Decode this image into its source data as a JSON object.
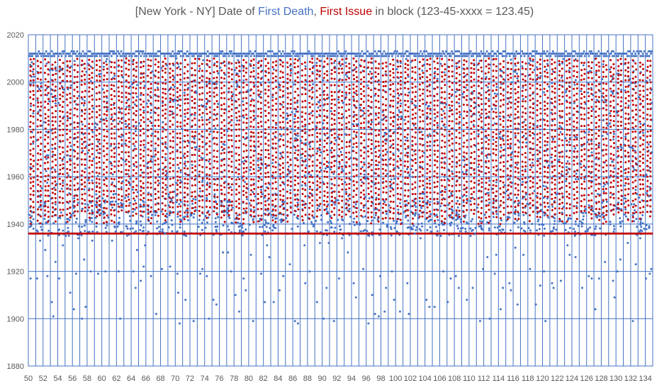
{
  "chart_data": {
    "type": "scatter",
    "title_parts": [
      {
        "text": "[New York - NY] Date of ",
        "color": "#595959"
      },
      {
        "text": "First Death",
        "color": "#4472C4"
      },
      {
        "text": ", ",
        "color": "#595959"
      },
      {
        "text": "First Issue",
        "color": "#C00000"
      },
      {
        "text": " in block (123-45-xxxx = 123.45)",
        "color": "#595959"
      }
    ],
    "x_range": [
      50,
      135
    ],
    "x_ticks": [
      "50",
      "52",
      "54",
      "56",
      "58",
      "60",
      "62",
      "64",
      "66",
      "68",
      "70",
      "72",
      "74",
      "76",
      "78",
      "80",
      "82",
      "84",
      "86",
      "88",
      "90",
      "92",
      "94",
      "96",
      "98",
      "100",
      "102",
      "104",
      "106",
      "108",
      "110",
      "112",
      "114",
      "116",
      "118",
      "120",
      "122",
      "124",
      "126",
      "128",
      "130",
      "132",
      "134"
    ],
    "y_range": [
      1880,
      2020
    ],
    "y_ticks": [
      "1880",
      "1900",
      "1920",
      "1940",
      "1960",
      "1980",
      "2000",
      "2020"
    ],
    "grid": true,
    "legend": "none",
    "series": [
      {
        "name": "First Death",
        "color": "#4472C4",
        "note_values": "dense per-block cloud: top band 2011-2013 in every block, scattered 1935-2010, sparse outliers 1898-1935",
        "points": [
          [
            50.3,
            1917
          ],
          [
            50.5,
            1945
          ],
          [
            50.7,
            1938
          ],
          [
            51.2,
            1917
          ],
          [
            51.6,
            1933
          ],
          [
            51.9,
            1940
          ],
          [
            52.3,
            1929
          ],
          [
            52.6,
            1918
          ],
          [
            53.2,
            1907
          ],
          [
            53.4,
            1901
          ],
          [
            53.7,
            1924
          ],
          [
            54.2,
            1917
          ],
          [
            54.7,
            1931
          ],
          [
            55.1,
            1935
          ],
          [
            55.7,
            1911
          ],
          [
            56.2,
            1904
          ],
          [
            56.5,
            1919
          ],
          [
            56.8,
            1934
          ],
          [
            57.3,
            1900
          ],
          [
            57.6,
            1925
          ],
          [
            57.8,
            1905
          ],
          [
            58.5,
            1920
          ],
          [
            58.7,
            1933
          ],
          [
            59.5,
            1919
          ],
          [
            60.5,
            1920
          ],
          [
            61.4,
            1933
          ],
          [
            62.3,
            1920
          ],
          [
            62.5,
            1900
          ],
          [
            63.4,
            1939
          ],
          [
            64.3,
            1920
          ],
          [
            64.6,
            1913
          ],
          [
            64.8,
            1929
          ],
          [
            65.3,
            1916
          ],
          [
            65.7,
            1922
          ],
          [
            65.9,
            1931
          ],
          [
            66.7,
            1918
          ],
          [
            67.4,
            1902
          ],
          [
            68.2,
            1921
          ],
          [
            68.6,
            1936
          ],
          [
            69.3,
            1922
          ],
          [
            70.3,
            1919
          ],
          [
            70.4,
            1911
          ],
          [
            70.6,
            1898
          ],
          [
            71.4,
            1908
          ],
          [
            72.5,
            1899
          ],
          [
            73.4,
            1919
          ],
          [
            73.7,
            1921
          ],
          [
            74.3,
            1918
          ],
          [
            74.6,
            1900
          ],
          [
            75.2,
            1908
          ],
          [
            75.6,
            1906
          ],
          [
            76.5,
            1928
          ],
          [
            77.2,
            1928
          ],
          [
            77.6,
            1920
          ],
          [
            78.2,
            1910
          ],
          [
            78.7,
            1903
          ],
          [
            79.3,
            1917
          ],
          [
            79.6,
            1912
          ],
          [
            80.3,
            1927
          ],
          [
            80.6,
            1899
          ],
          [
            81.7,
            1919
          ],
          [
            82.2,
            1907
          ],
          [
            82.5,
            1931
          ],
          [
            82.8,
            1926
          ],
          [
            83.4,
            1907
          ],
          [
            84.2,
            1912
          ],
          [
            84.7,
            1918
          ],
          [
            85.6,
            1923
          ],
          [
            86.3,
            1899
          ],
          [
            86.7,
            1898
          ],
          [
            87.6,
            1931
          ],
          [
            87.7,
            1915
          ],
          [
            88.3,
            1920
          ],
          [
            89.3,
            1907
          ],
          [
            89.7,
            1932
          ],
          [
            90.2,
            1900
          ],
          [
            90.6,
            1913
          ],
          [
            90.9,
            1932
          ],
          [
            91.6,
            1899
          ],
          [
            92.3,
            1917
          ],
          [
            92.7,
            1934
          ],
          [
            93.5,
            1928
          ],
          [
            94.3,
            1915
          ],
          [
            94.6,
            1909
          ],
          [
            95.6,
            1921
          ],
          [
            96.3,
            1898
          ],
          [
            96.8,
            1910
          ],
          [
            97.2,
            1902
          ],
          [
            97.7,
            1901
          ],
          [
            97.9,
            1918
          ],
          [
            98.5,
            1903
          ],
          [
            98.7,
            1913
          ],
          [
            99.5,
            1920
          ],
          [
            99.8,
            1908
          ],
          [
            100.6,
            1903
          ],
          [
            101.6,
            1915
          ],
          [
            101.8,
            1902
          ],
          [
            102.6,
            1936
          ],
          [
            103.4,
            1934
          ],
          [
            104.2,
            1908
          ],
          [
            104.6,
            1905
          ],
          [
            105.3,
            1905
          ],
          [
            105.7,
            1937
          ],
          [
            106.5,
            1920
          ],
          [
            107.1,
            1907
          ],
          [
            107.5,
            1917
          ],
          [
            108.2,
            1918
          ],
          [
            108.6,
            1913
          ],
          [
            109.5,
            1938
          ],
          [
            109.7,
            1908
          ],
          [
            110.5,
            1913
          ],
          [
            110.8,
            1936
          ],
          [
            111.5,
            1899
          ],
          [
            111.9,
            1921
          ],
          [
            112.5,
            1926
          ],
          [
            112.8,
            1900
          ],
          [
            113.5,
            1919
          ],
          [
            113.7,
            1927
          ],
          [
            114.3,
            1904
          ],
          [
            114.6,
            1913
          ],
          [
            115.5,
            1915
          ],
          [
            115.7,
            1912
          ],
          [
            116.3,
            1930
          ],
          [
            116.6,
            1906
          ],
          [
            117.4,
            1927
          ],
          [
            118.3,
            1921
          ],
          [
            119.1,
            1906
          ],
          [
            119.7,
            1914
          ],
          [
            120.2,
            1920
          ],
          [
            120.4,
            1899
          ],
          [
            121.3,
            1915
          ],
          [
            121.5,
            1913
          ],
          [
            122.5,
            1916
          ],
          [
            123.4,
            1931
          ],
          [
            123.7,
            1927
          ],
          [
            124.5,
            1926
          ],
          [
            125.4,
            1913
          ],
          [
            126.3,
            1918
          ],
          [
            126.7,
            1917
          ],
          [
            127.2,
            1904
          ],
          [
            127.7,
            1917
          ],
          [
            128.5,
            1924
          ],
          [
            129.6,
            1916
          ],
          [
            129.8,
            1909
          ],
          [
            130.2,
            1920
          ],
          [
            130.6,
            1925
          ],
          [
            131.6,
            1932
          ],
          [
            132.3,
            1899
          ],
          [
            132.7,
            1923
          ],
          [
            133.3,
            1934
          ],
          [
            134.1,
            1917
          ],
          [
            134.6,
            1919
          ],
          [
            134.8,
            1921
          ],
          [
            52.2,
            1983
          ],
          [
            53.1,
            1997
          ],
          [
            55.4,
            1969
          ],
          [
            57.5,
            1978
          ],
          [
            58.3,
            1955
          ],
          [
            59.4,
            1982
          ],
          [
            61.5,
            1961
          ],
          [
            63.2,
            1974
          ],
          [
            66.4,
            1992
          ],
          [
            68.3,
            1983
          ],
          [
            70.2,
            1952
          ],
          [
            72.3,
            1965
          ],
          [
            75.5,
            1986
          ],
          [
            77.3,
            1996
          ],
          [
            79.5,
            1976
          ],
          [
            81.6,
            1963
          ],
          [
            84.3,
            1970
          ],
          [
            86.2,
            1999
          ],
          [
            88.5,
            1987
          ],
          [
            91.3,
            1957
          ],
          [
            93.2,
            1978
          ],
          [
            95.7,
            1966
          ],
          [
            98.2,
            1984
          ],
          [
            100.3,
            1991
          ],
          [
            102.3,
            1960
          ],
          [
            104.7,
            1973
          ],
          [
            107.4,
            1989
          ],
          [
            109.2,
            1967
          ],
          [
            111.3,
            1978
          ],
          [
            113.1,
            1955
          ],
          [
            116.6,
            1980
          ],
          [
            118.5,
            1964
          ],
          [
            121.2,
            1987
          ],
          [
            123.3,
            1971
          ],
          [
            125.7,
            1959
          ],
          [
            128.3,
            1984
          ],
          [
            130.3,
            1972
          ],
          [
            132.5,
            1963
          ],
          [
            134.2,
            1953
          ]
        ]
      },
      {
        "name": "First Issue",
        "color": "#C00000",
        "note_values": "one point per SSN group in every block; 1936 baseline line across all blocks, rising 1940-2010",
        "baseline_year": 1936
      }
    ]
  }
}
